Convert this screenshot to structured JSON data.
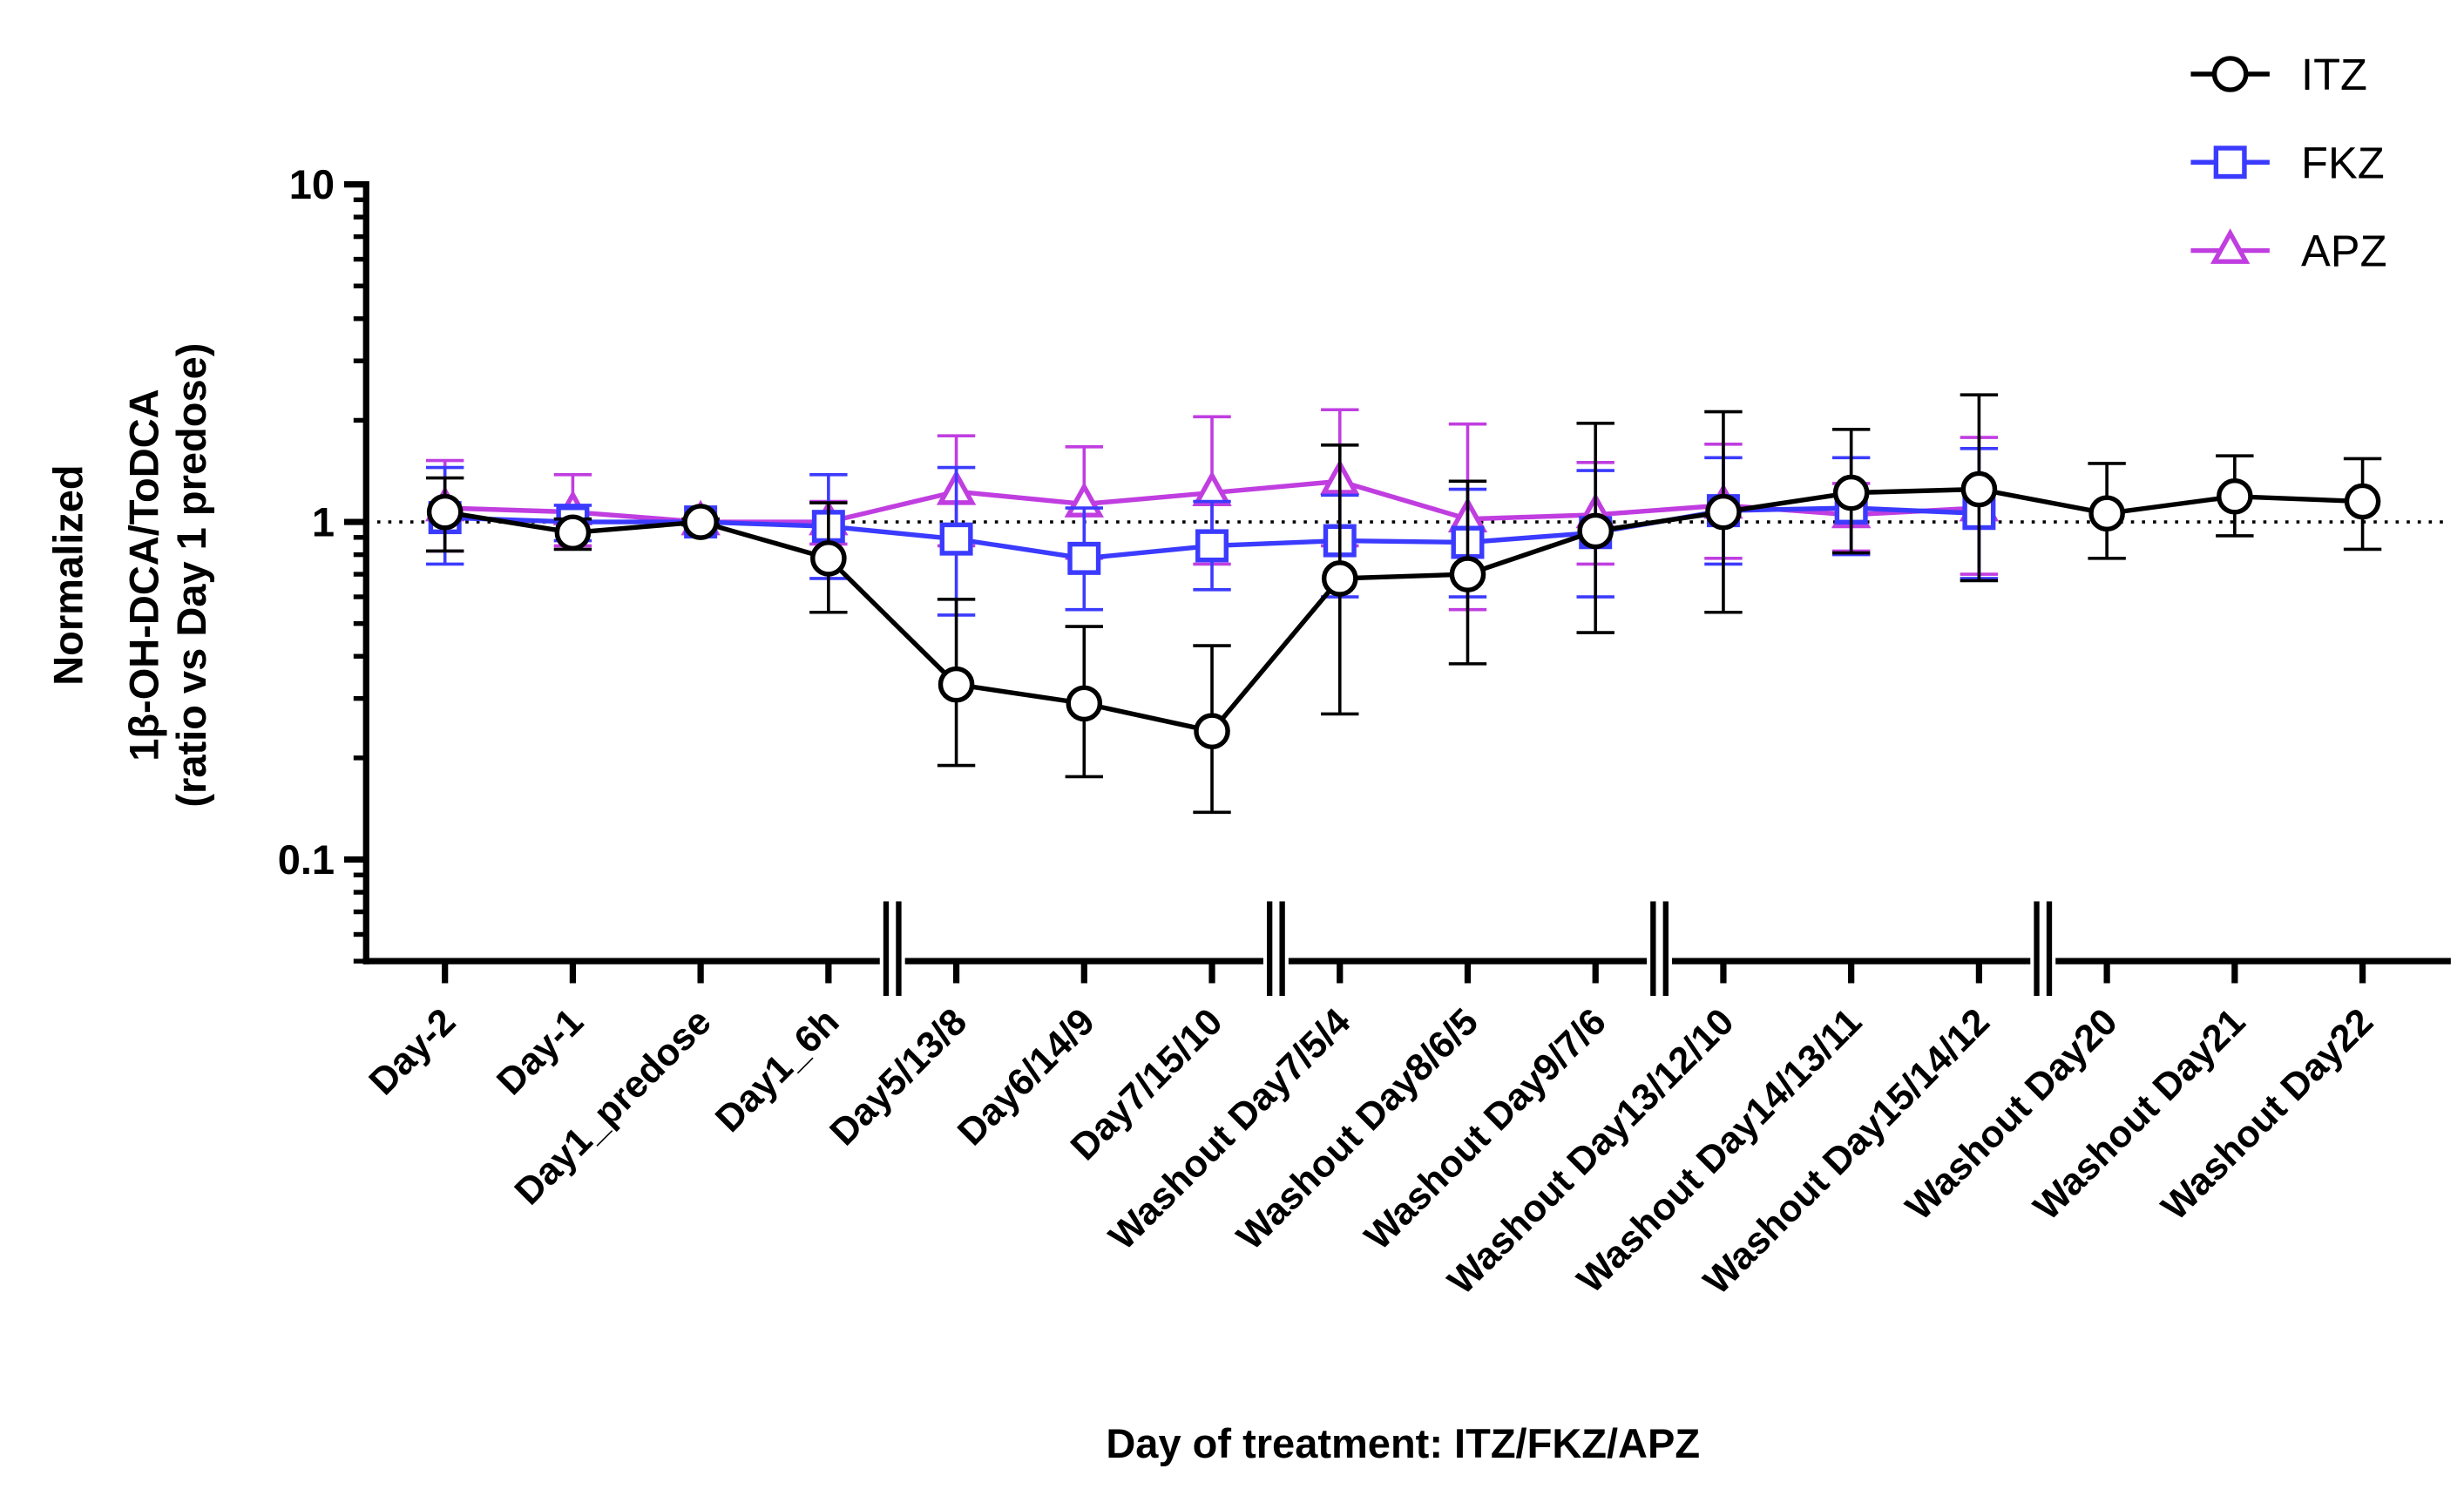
{
  "chart_data": {
    "type": "line",
    "xlabel": "Day of treatment: ITZ/FKZ/APZ",
    "ylabel": [
      "Normalized",
      "1β-OH-DCA/ToDCA",
      "(ratio vs Day 1 predose)"
    ],
    "categories": [
      "Day-2",
      "Day-1",
      "Day1_predose",
      "Day1_6h",
      "Day5/13/8",
      "Day6/14/9",
      "Day7/15/10",
      "Washout Day7/5/4",
      "Washout Day8/6/5",
      "Washout Day9/7/6",
      "Washout Day13/12/10",
      "Washout Day14/13/11",
      "Washout Day15/14/12",
      "Washout Day20",
      "Washout Day21",
      "Washout Day22"
    ],
    "log_scale": true,
    "ylim": [
      0.05,
      10
    ],
    "yticks": [
      0.1,
      1,
      10
    ],
    "reference_line": 1,
    "legend": "upper right",
    "series": [
      {
        "name": "APZ",
        "color": "#c03ee0",
        "marker": "triangle",
        "values": [
          1.1,
          1.07,
          1.0,
          1.0,
          1.23,
          1.13,
          1.22,
          1.32,
          1.02,
          1.05,
          1.12,
          1.05,
          1.1,
          null,
          null,
          null
        ],
        "upper": [
          1.52,
          1.38,
          1.02,
          1.15,
          1.8,
          1.67,
          2.05,
          2.15,
          1.95,
          1.5,
          1.7,
          1.3,
          1.78,
          null,
          null,
          null
        ],
        "lower": [
          0.82,
          0.85,
          0.98,
          0.86,
          0.85,
          0.78,
          0.75,
          0.85,
          0.55,
          0.75,
          0.78,
          0.82,
          0.7,
          null,
          null,
          null
        ]
      },
      {
        "name": "FKZ",
        "color": "#3b3bff",
        "marker": "square",
        "values": [
          1.03,
          1.0,
          1.0,
          0.97,
          0.89,
          0.78,
          0.85,
          0.88,
          0.87,
          0.93,
          1.08,
          1.1,
          1.06,
          null,
          null,
          null
        ],
        "upper": [
          1.45,
          1.12,
          1.02,
          1.38,
          1.45,
          1.1,
          1.15,
          1.2,
          1.25,
          1.42,
          1.55,
          1.55,
          1.65,
          null,
          null,
          null
        ],
        "lower": [
          0.75,
          0.88,
          0.98,
          0.68,
          0.53,
          0.55,
          0.63,
          0.6,
          0.6,
          0.6,
          0.75,
          0.8,
          0.68,
          null,
          null,
          null
        ]
      },
      {
        "name": "ITZ",
        "color": "#000000",
        "marker": "circle",
        "values": [
          1.07,
          0.93,
          1.0,
          0.78,
          0.33,
          0.29,
          0.24,
          0.68,
          0.7,
          0.94,
          1.07,
          1.22,
          1.25,
          1.06,
          1.19,
          1.15
        ],
        "upper": [
          1.35,
          1.02,
          1.02,
          1.14,
          0.59,
          0.49,
          0.43,
          1.69,
          1.32,
          1.96,
          2.12,
          1.88,
          2.38,
          1.49,
          1.57,
          1.54
        ],
        "lower": [
          0.82,
          0.83,
          0.98,
          0.54,
          0.19,
          0.176,
          0.138,
          0.27,
          0.38,
          0.47,
          0.54,
          0.81,
          0.67,
          0.78,
          0.91,
          0.83
        ]
      }
    ]
  }
}
